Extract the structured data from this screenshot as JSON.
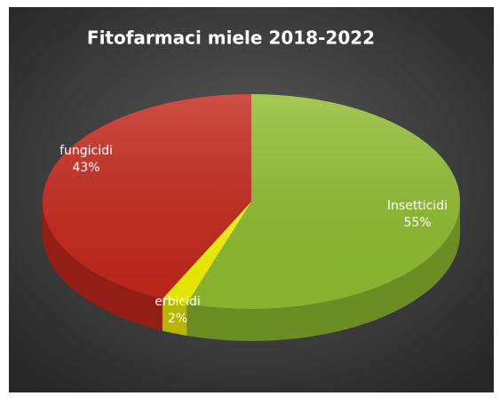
{
  "chart_data": {
    "type": "pie",
    "title": "Fitofarmaci miele 2018-2022",
    "categories": [
      "Insetticidi",
      "erbicidi",
      "fungicidi"
    ],
    "values": [
      55,
      2,
      43
    ],
    "value_labels": [
      "55%",
      "2%",
      "43%"
    ],
    "colors": [
      "#8fbc30",
      "#f2f200",
      "#c4281c"
    ]
  }
}
